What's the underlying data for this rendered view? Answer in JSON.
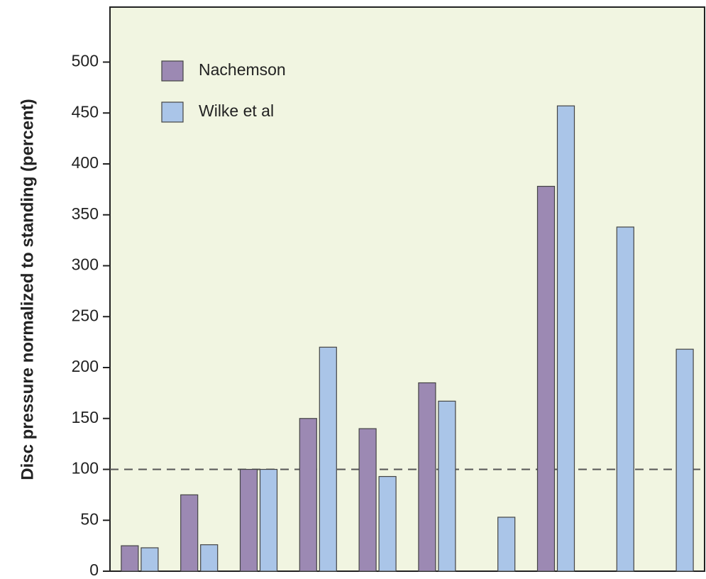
{
  "chart_data": {
    "type": "bar",
    "y_label": "Disc pressure normalized to standing (percent)",
    "categories": [
      null,
      null,
      null,
      null,
      null,
      null,
      null,
      null,
      null,
      null
    ],
    "series": [
      {
        "name": "Nachemson",
        "color": "#9c89b3",
        "values": [
          25,
          75,
          100,
          150,
          140,
          185,
          null,
          378,
          null,
          null
        ]
      },
      {
        "name": "Wilke et al",
        "color": "#aac5e8",
        "values": [
          23,
          26,
          100,
          220,
          93,
          167,
          53,
          457,
          338,
          218
        ]
      }
    ],
    "ylim": [
      0,
      554
    ],
    "yticks": [
      0,
      50,
      100,
      150,
      200,
      250,
      300,
      350,
      400,
      450,
      500
    ],
    "reference_line": 100,
    "legend": "upper left"
  }
}
